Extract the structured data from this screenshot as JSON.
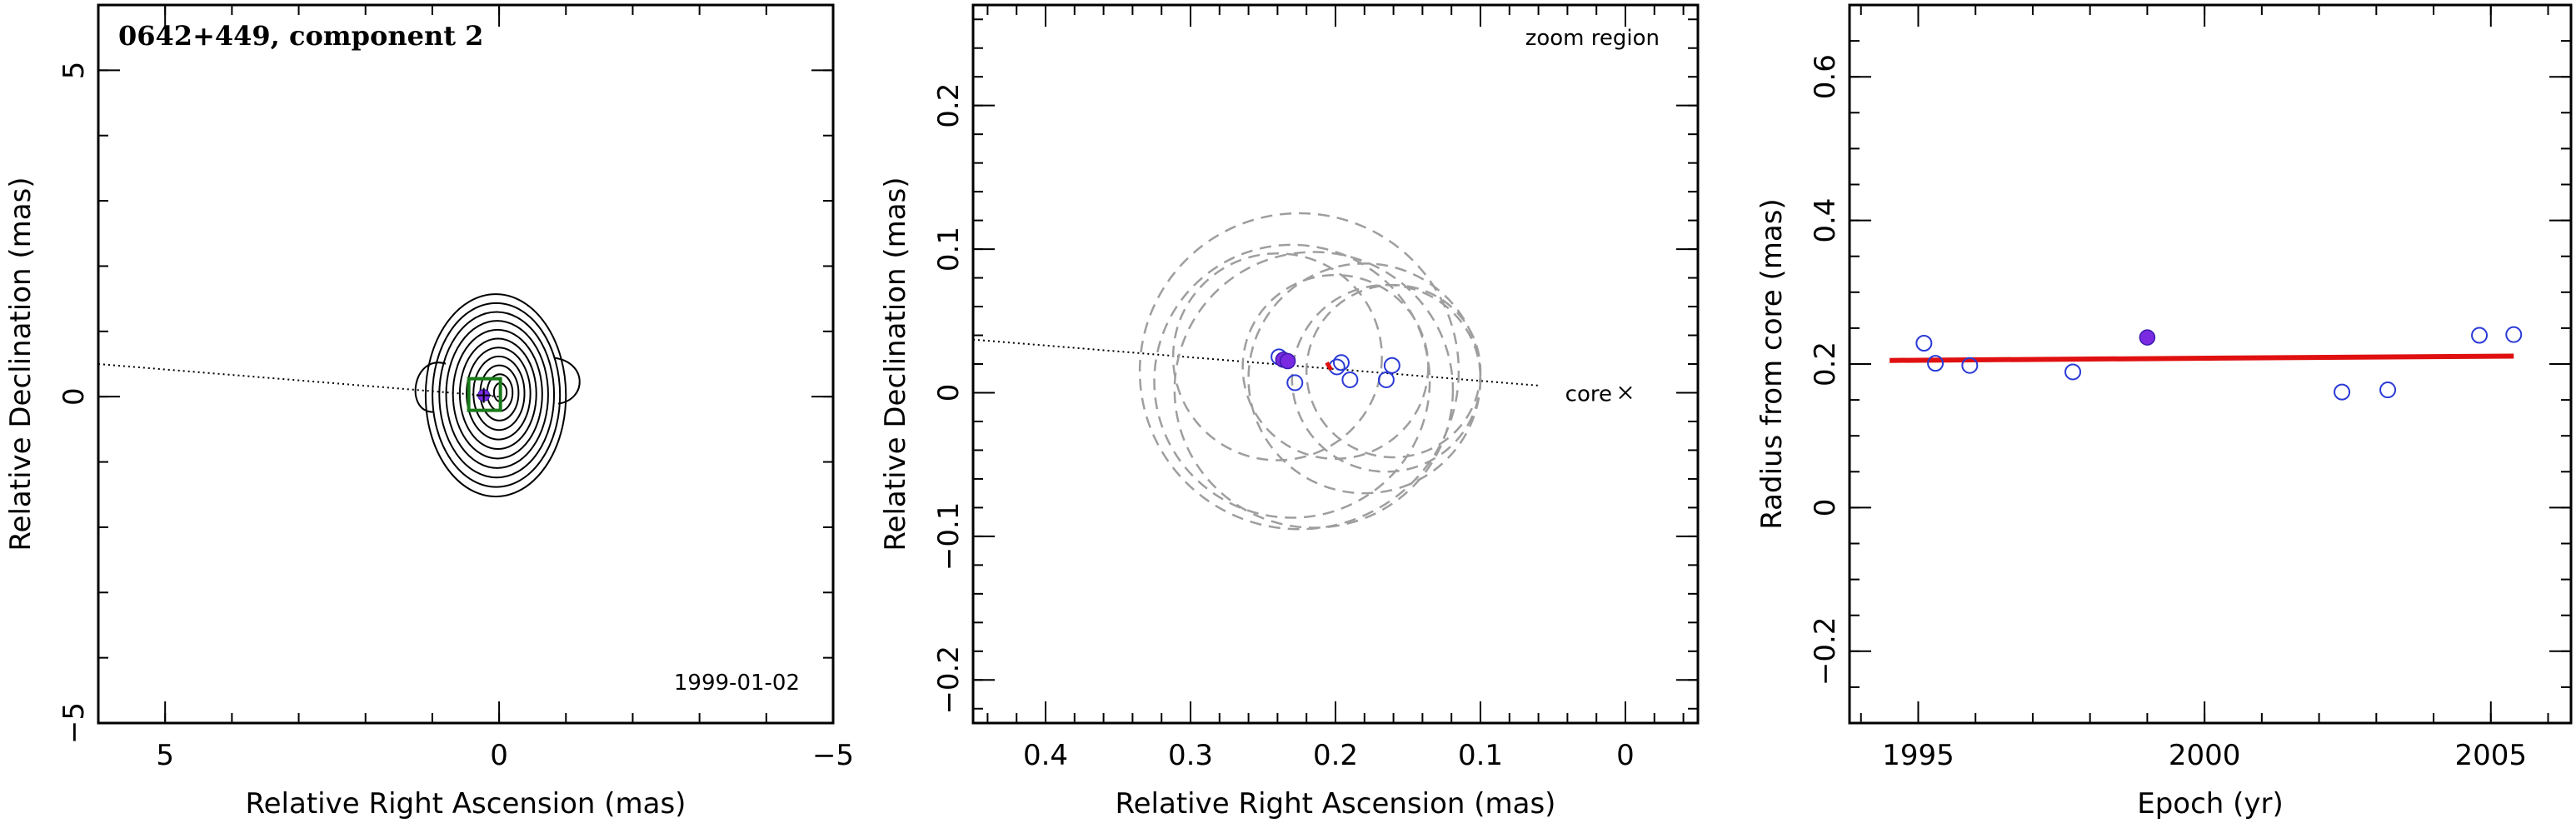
{
  "chart_data": [
    {
      "type": "contour",
      "title": "0642+449, component 2",
      "annotation": "1999-01-02",
      "xlabel": "Relative Right Ascension (mas)",
      "ylabel": "Relative Declination (mas)",
      "xlim": [
        6,
        -5
      ],
      "ylim": [
        -5,
        6
      ],
      "xticks": [
        5,
        0,
        -5
      ],
      "yticks": [
        5,
        0,
        -5
      ],
      "xtick_labels": [
        "5",
        "0",
        "−5"
      ],
      "ytick_labels": [
        "5",
        "0",
        "−5"
      ],
      "component_position": [
        0.23,
        0.02
      ],
      "pa_line": {
        "from": [
          6,
          0.5
        ],
        "to": [
          0,
          0
        ]
      },
      "contours": {
        "center": [
          0.05,
          0.02
        ],
        "count": 11,
        "outer_semi_major": 1.55,
        "outer_semi_minor": 1.05
      }
    },
    {
      "type": "scatter",
      "annotation": "zoom region",
      "core_label": "core",
      "xlabel": "Relative Right Ascension (mas)",
      "ylabel": "Relative Declination (mas)",
      "xlim": [
        0.45,
        -0.05
      ],
      "ylim": [
        -0.23,
        0.27
      ],
      "xticks": [
        0.4,
        0.3,
        0.2,
        0.1,
        0
      ],
      "yticks": [
        0.2,
        0.1,
        0,
        -0.1,
        -0.2
      ],
      "xtick_labels": [
        "0.4",
        "0.3",
        "0.2",
        "0.1",
        "0"
      ],
      "ytick_labels": [
        "0.2",
        "0.1",
        "0",
        "−0.1",
        "−0.2"
      ],
      "pa_line": {
        "from": [
          0.45,
          0.037
        ],
        "to": [
          0.06,
          0.005
        ]
      },
      "core": [
        0,
        0
      ],
      "points_open": [
        [
          0.239,
          0.025
        ],
        [
          0.228,
          0.007
        ],
        [
          0.199,
          0.018
        ],
        [
          0.196,
          0.021
        ],
        [
          0.19,
          0.009
        ],
        [
          0.165,
          0.009
        ],
        [
          0.161,
          0.019
        ]
      ],
      "points_filled": [
        [
          0.236,
          0.023
        ],
        [
          0.233,
          0.022
        ]
      ],
      "circles": [
        {
          "center": [
            0.24,
            0.025
          ],
          "radius": 0.072
        },
        {
          "center": [
            0.23,
            0.008
          ],
          "radius": 0.095
        },
        {
          "center": [
            0.225,
            0.015
          ],
          "radius": 0.11
        },
        {
          "center": [
            0.215,
            0.002
          ],
          "radius": 0.096
        },
        {
          "center": [
            0.2,
            0.018
          ],
          "radius": 0.064
        },
        {
          "center": [
            0.18,
            0.01
          ],
          "radius": 0.08
        },
        {
          "center": [
            0.165,
            0.01
          ],
          "radius": 0.065
        },
        {
          "center": [
            0.16,
            0.015
          ],
          "radius": 0.06
        }
      ],
      "fit_segment": [
        [
          0.206,
          0.021
        ],
        [
          0.203,
          0.016
        ]
      ]
    },
    {
      "type": "scatter",
      "xlabel": "Epoch (yr)",
      "ylabel": "Radius from core (mas)",
      "xlim": [
        1993.8,
        2006.4
      ],
      "ylim": [
        -0.3,
        0.7
      ],
      "xticks": [
        1995,
        2000,
        2005
      ],
      "yticks": [
        -0.2,
        0,
        0.2,
        0.4,
        0.6
      ],
      "xtick_labels": [
        "1995",
        "2000",
        "2005"
      ],
      "ytick_labels": [
        "−0.2",
        "0",
        "0.2",
        "0.4",
        "0.6"
      ],
      "points_open": [
        [
          1995.1,
          0.229
        ],
        [
          1995.3,
          0.201
        ],
        [
          1995.9,
          0.198
        ],
        [
          1997.7,
          0.189
        ],
        [
          2002.4,
          0.161
        ],
        [
          2003.2,
          0.164
        ],
        [
          2004.8,
          0.24
        ],
        [
          2005.4,
          0.241
        ]
      ],
      "points_filled": [
        [
          1999.0,
          0.237
        ]
      ],
      "fit_line": [
        [
          1994.5,
          0.205
        ],
        [
          2005.4,
          0.211
        ]
      ]
    }
  ]
}
